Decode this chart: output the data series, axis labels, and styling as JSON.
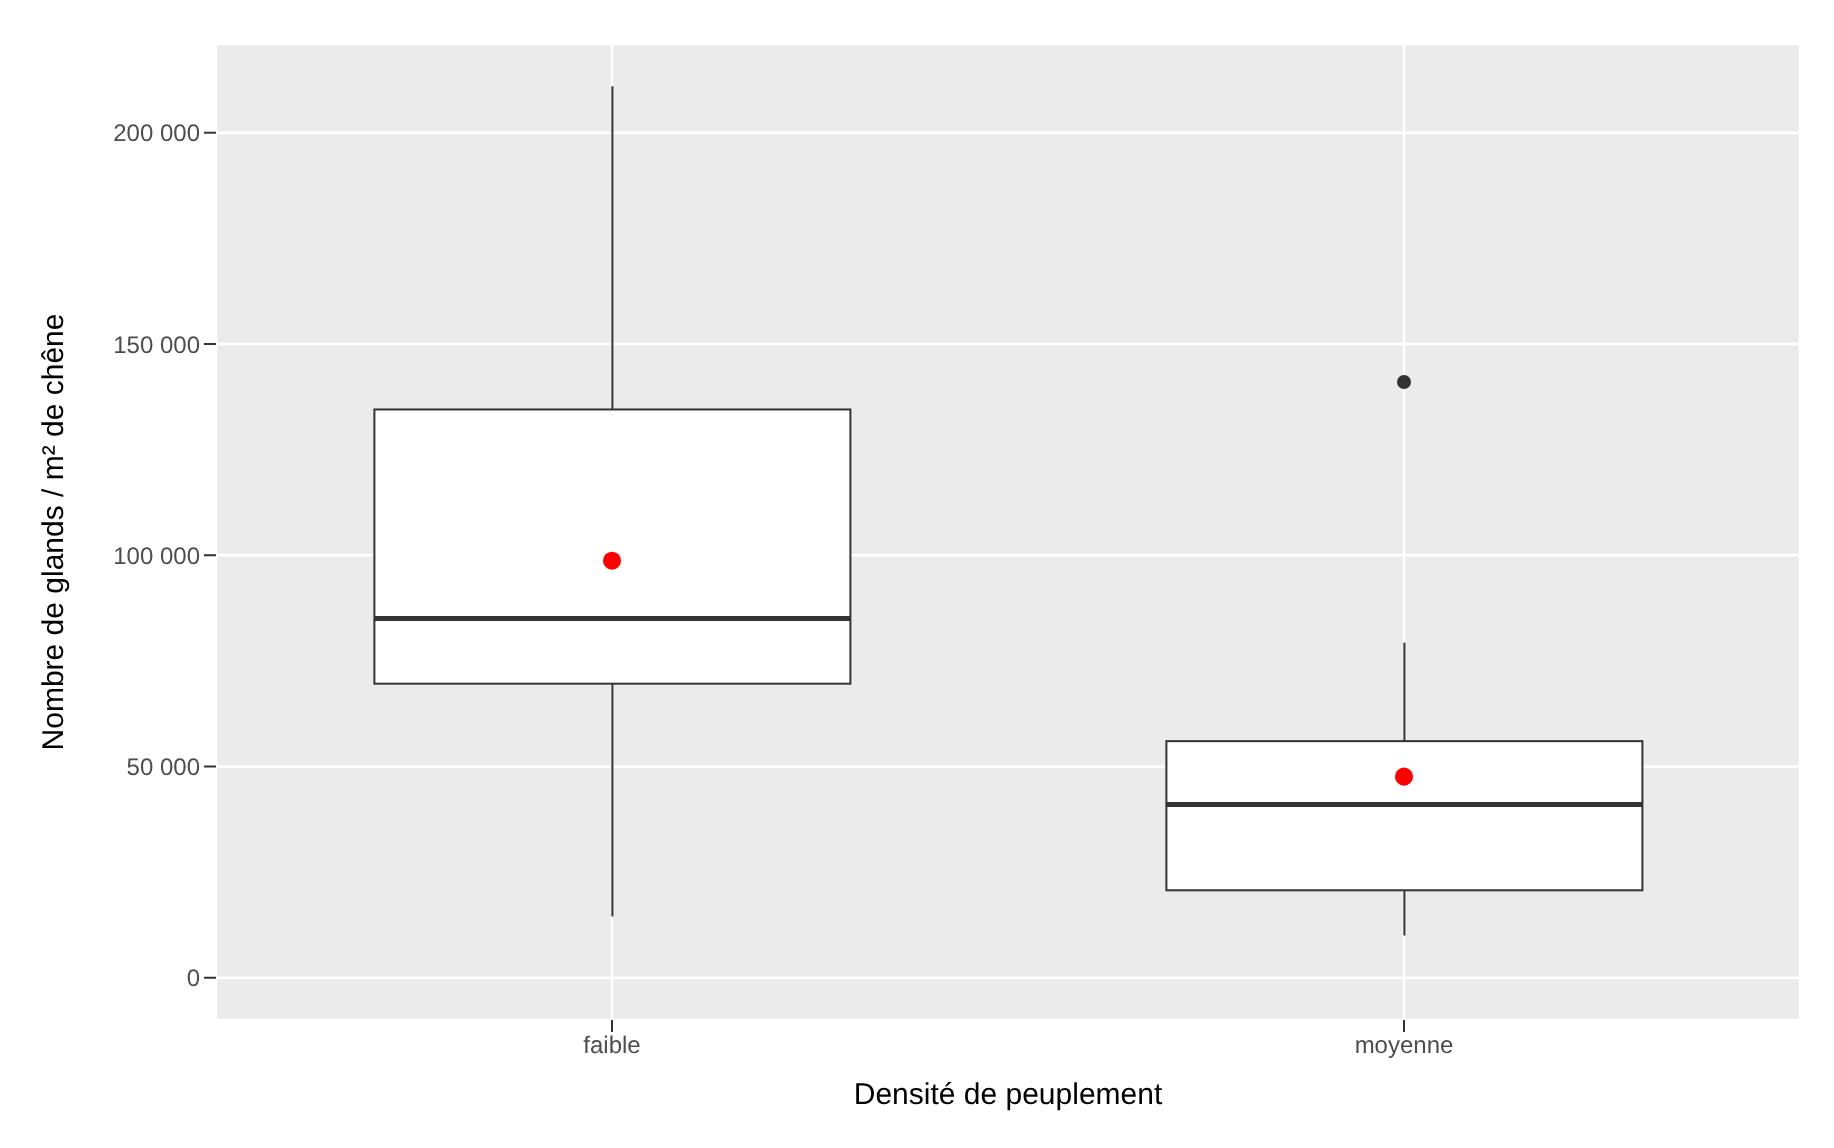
{
  "chart_data": {
    "type": "box",
    "xlabel": "Densité de peuplement",
    "ylabel": "Nombre de glands / m² de chêne",
    "categories": [
      "faible",
      "moyenne"
    ],
    "boxes": [
      {
        "low": 14500,
        "q1": 69600,
        "median": 85000,
        "q3": 134500,
        "high": 211000,
        "mean": 98700
      },
      {
        "low": 10000,
        "q1": 20700,
        "median": 41000,
        "q3": 56000,
        "high": 79300,
        "mean": 47600,
        "outliers": [
          141000
        ]
      }
    ],
    "color": "#333333",
    "ylim": [
      -10000,
      221000
    ],
    "yticks": [
      {
        "value": 0,
        "label": "0"
      },
      {
        "value": 50000,
        "label": "50 000"
      },
      {
        "value": 100000,
        "label": "100 000"
      },
      {
        "value": 150000,
        "label": "150 000"
      },
      {
        "value": 200000,
        "label": "200 000"
      }
    ],
    "grid": true,
    "legend": false
  }
}
